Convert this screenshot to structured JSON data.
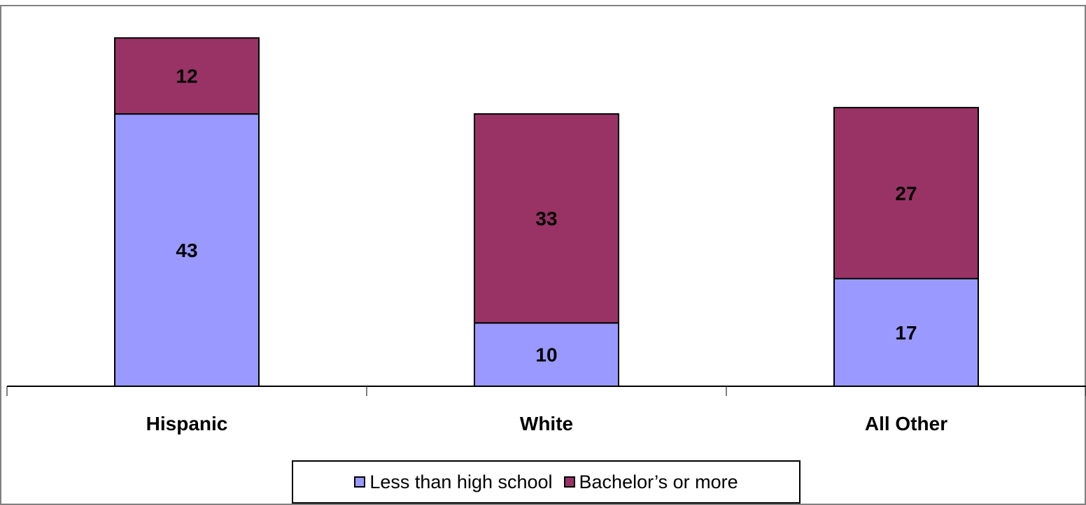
{
  "chart_data": {
    "type": "bar",
    "stacked": true,
    "categories": [
      "Hispanic",
      "White",
      "All Other"
    ],
    "series": [
      {
        "name": "Less than high school",
        "values": [
          43,
          10,
          17
        ],
        "color": "#9999FF"
      },
      {
        "name": "Bachelor’s or more",
        "values": [
          12,
          33,
          27
        ],
        "color": "#993366"
      }
    ],
    "title": "",
    "xlabel": "",
    "ylabel": "",
    "ylim": [
      0,
      60
    ],
    "grid": false,
    "legend_position": "bottom",
    "data_labels": true
  }
}
